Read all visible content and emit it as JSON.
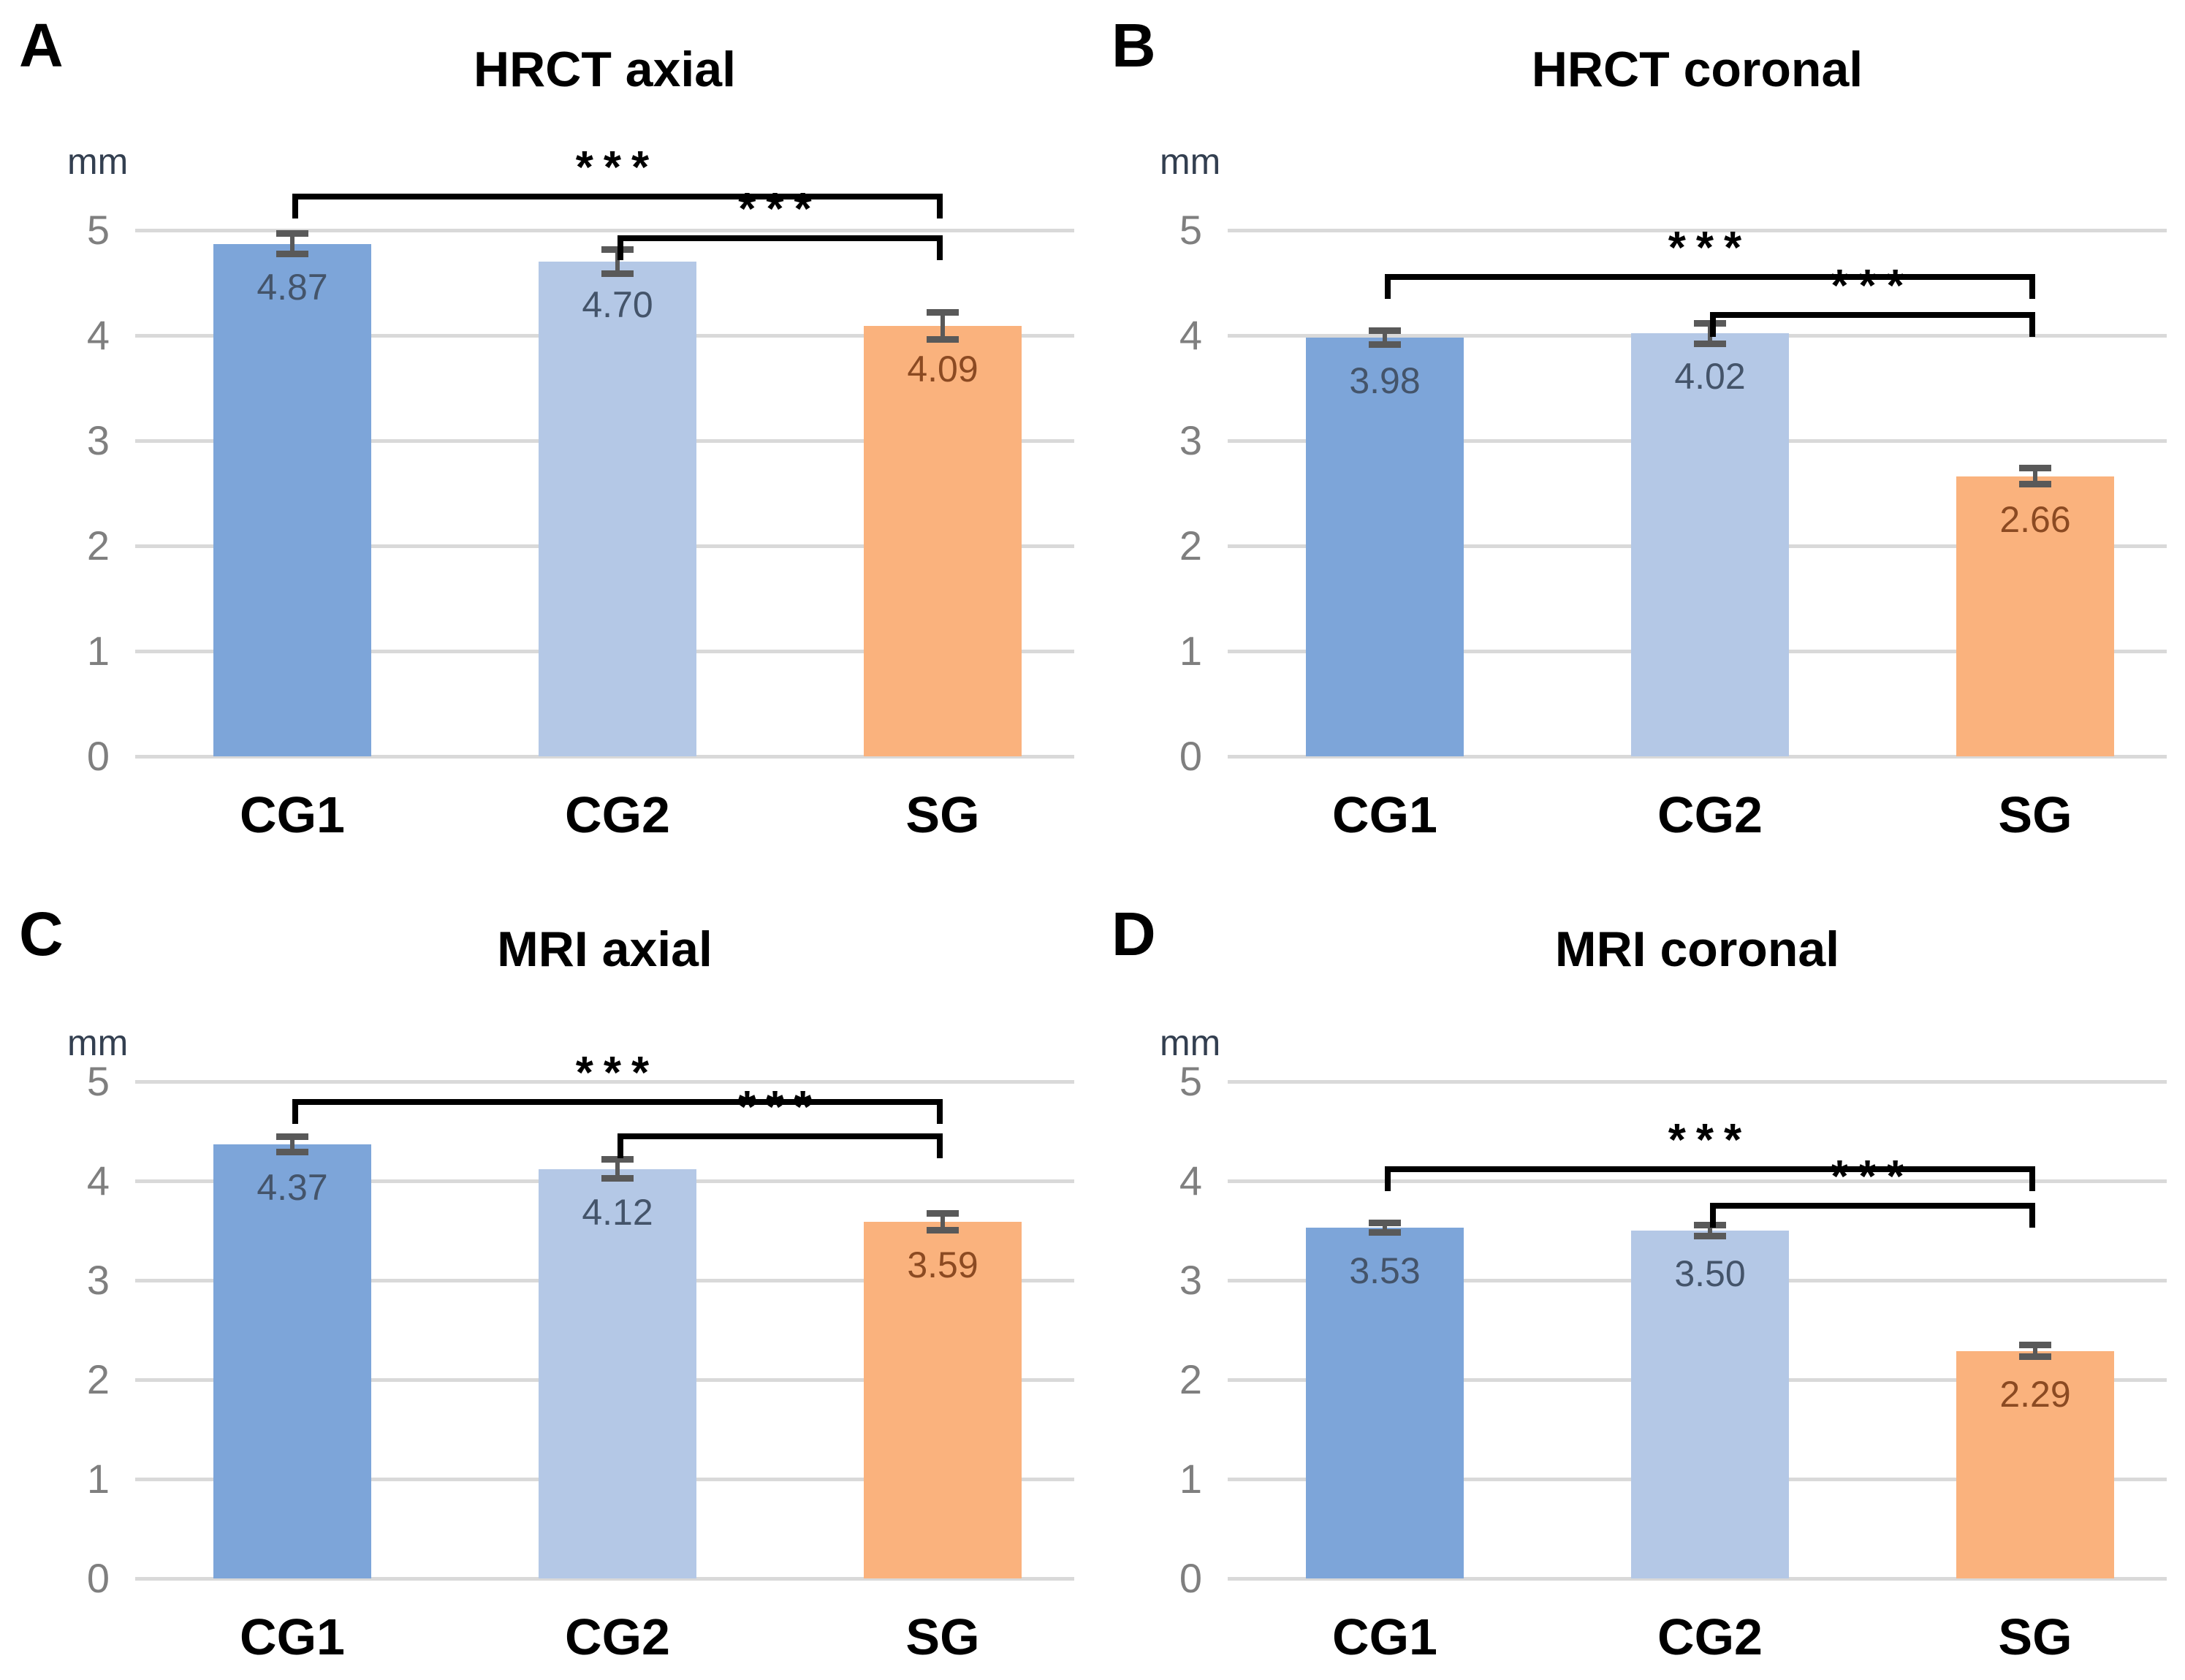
{
  "figure_type": "four-panel bar chart comparing measurements (mm) across groups CG1, CG2, SG",
  "colors": {
    "series": [
      "#7da5d9",
      "#b4c8e6",
      "#fab27d"
    ],
    "value_labels": [
      "#44546a",
      "#44546a",
      "#8b4a22"
    ],
    "error_bar": "#595959",
    "gridline": "#d9d9d9",
    "tick_label": "#7f7f7f",
    "bracket": "#000000",
    "unit_label": "#333f50",
    "text": "#000000"
  },
  "chart_data": [
    {
      "type": "bar",
      "panel_letter": "A",
      "title": "HRCT axial",
      "ylabel": "mm",
      "xlabel": "",
      "categories": [
        "CG1",
        "CG2",
        "SG"
      ],
      "values": [
        4.87,
        4.7,
        4.09
      ],
      "value_labels": [
        "4.87",
        "4.70",
        "4.09"
      ],
      "errors": [
        0.1,
        0.12,
        0.13
      ],
      "ylim": [
        0,
        5
      ],
      "yticks": [
        0,
        1,
        2,
        3,
        4,
        5
      ],
      "ytick_labels": [
        "0",
        "1",
        "2",
        "3",
        "4",
        "5"
      ],
      "grid": true,
      "legend": false,
      "sig_brackets": [
        {
          "from": 0,
          "to": 2,
          "y": 5.35,
          "label": "***"
        },
        {
          "from": 1,
          "to": 2,
          "y": 4.95,
          "label": "***"
        }
      ]
    },
    {
      "type": "bar",
      "panel_letter": "B",
      "title": "HRCT coronal",
      "ylabel": "mm",
      "xlabel": "",
      "categories": [
        "CG1",
        "CG2",
        "SG"
      ],
      "values": [
        3.98,
        4.02,
        2.66
      ],
      "value_labels": [
        "3.98",
        "4.02",
        "2.66"
      ],
      "errors": [
        0.07,
        0.1,
        0.08
      ],
      "ylim": [
        0,
        5
      ],
      "yticks": [
        0,
        1,
        2,
        3,
        4,
        5
      ],
      "ytick_labels": [
        "0",
        "1",
        "2",
        "3",
        "4",
        "5"
      ],
      "grid": true,
      "legend": false,
      "sig_brackets": [
        {
          "from": 0,
          "to": 2,
          "y": 4.58,
          "label": "***"
        },
        {
          "from": 1,
          "to": 2,
          "y": 4.22,
          "label": "***"
        }
      ]
    },
    {
      "type": "bar",
      "panel_letter": "C",
      "title": "MRI axial",
      "ylabel": "mm",
      "xlabel": "",
      "categories": [
        "CG1",
        "CG2",
        "SG"
      ],
      "values": [
        4.37,
        4.12,
        3.59
      ],
      "value_labels": [
        "4.37",
        "4.12",
        "3.59"
      ],
      "errors": [
        0.08,
        0.1,
        0.09
      ],
      "ylim": [
        0,
        5
      ],
      "yticks": [
        0,
        1,
        2,
        3,
        4,
        5
      ],
      "ytick_labels": [
        "0",
        "1",
        "2",
        "3",
        "4",
        "5"
      ],
      "grid": true,
      "legend": false,
      "sig_brackets": [
        {
          "from": 0,
          "to": 2,
          "y": 4.82,
          "label": "***"
        },
        {
          "from": 1,
          "to": 2,
          "y": 4.48,
          "label": "***"
        }
      ]
    },
    {
      "type": "bar",
      "panel_letter": "D",
      "title": "MRI coronal",
      "ylabel": "mm",
      "xlabel": "",
      "categories": [
        "CG1",
        "CG2",
        "SG"
      ],
      "values": [
        3.53,
        3.5,
        2.29
      ],
      "value_labels": [
        "3.53",
        "3.50",
        "2.29"
      ],
      "errors": [
        0.05,
        0.06,
        0.06
      ],
      "ylim": [
        0,
        5
      ],
      "yticks": [
        0,
        1,
        2,
        3,
        4,
        5
      ],
      "ytick_labels": [
        "0",
        "1",
        "2",
        "3",
        "4",
        "5"
      ],
      "grid": true,
      "legend": false,
      "sig_brackets": [
        {
          "from": 0,
          "to": 2,
          "y": 4.15,
          "label": "***"
        },
        {
          "from": 1,
          "to": 2,
          "y": 3.78,
          "label": "***"
        }
      ]
    }
  ]
}
